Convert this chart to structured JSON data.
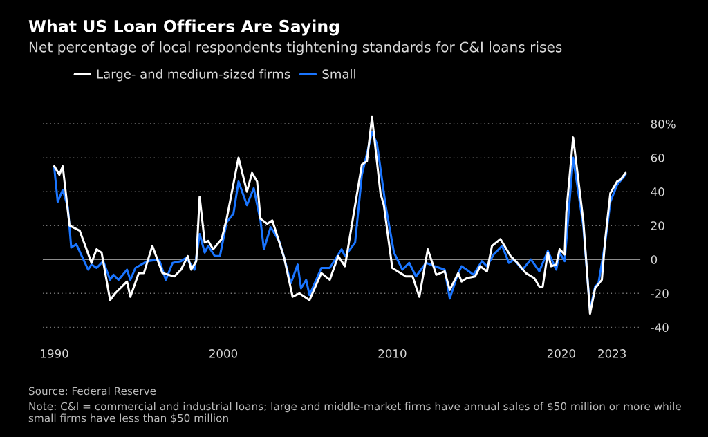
{
  "chart_data": {
    "type": "line",
    "title": "What US Loan Officers Are Saying",
    "subtitle": "Net percentage of local respondents tightening standards for C&I loans rises",
    "annotations": [
      "Source: Federal Reserve",
      "Note: C&I = commercial and industrial loans; large and middle-market firms have annual sales of $50 million or more while small firms have less than $50 million"
    ],
    "series": [
      {
        "name": "Large- and medium-sized firms",
        "color": "#ffffff",
        "x": [
          1990.0,
          1990.3,
          1990.5,
          1990.9,
          1991.5,
          1992.2,
          1992.5,
          1992.8,
          1993.3,
          1993.6,
          1994.3,
          1994.5,
          1995.0,
          1995.3,
          1995.8,
          1996.4,
          1997.1,
          1997.5,
          1997.9,
          1998.1,
          1998.4,
          1998.6,
          1998.9,
          1999.1,
          1999.4,
          1999.9,
          2000.2,
          2000.9,
          2001.4,
          2001.7,
          2002.0,
          2002.2,
          2002.6,
          2002.9,
          2003.6,
          2004.1,
          2004.5,
          2005.1,
          2005.8,
          2006.3,
          2006.8,
          2007.2,
          2008.2,
          2008.5,
          2008.8,
          2009.3,
          2009.5,
          2010.0,
          2010.8,
          2011.2,
          2011.6,
          2012.1,
          2012.6,
          2013.1,
          2013.4,
          2013.9,
          2014.1,
          2014.4,
          2014.9,
          2015.2,
          2015.6,
          2015.9,
          2016.4,
          2017.0,
          2017.4,
          2017.9,
          2018.4,
          2018.7,
          2018.9,
          2019.2,
          2019.4,
          2019.7,
          2019.9,
          2020.2,
          2020.3,
          2020.7,
          2021.3,
          2021.7,
          2022.0,
          2022.4,
          2022.6,
          2022.9,
          2023.3,
          2023.5,
          2023.8
        ],
        "values": [
          55,
          50,
          55,
          20,
          17,
          -2,
          6,
          4,
          -24,
          -20,
          -13,
          -22,
          -8,
          -8,
          8,
          -8,
          -10,
          -6,
          2,
          -6,
          -1,
          37,
          10,
          11,
          6,
          12,
          24,
          60,
          40,
          51,
          46,
          24,
          21,
          23,
          1,
          -22,
          -20,
          -24,
          -8,
          -12,
          2,
          -4,
          56,
          58,
          84,
          39,
          32,
          -5,
          -10,
          -10,
          -22,
          6,
          -9,
          -7,
          -18,
          -8,
          -13,
          -11,
          -10,
          -4,
          -7,
          8,
          12,
          2,
          -2,
          -8,
          -11,
          -16,
          -16,
          4,
          -4,
          -3,
          6,
          3,
          28,
          72,
          23,
          -32,
          -17,
          -12,
          12,
          39,
          46,
          47,
          51
        ]
      },
      {
        "name": "Small",
        "color": "#1a75ff",
        "x": [
          1990.0,
          1990.2,
          1990.5,
          1990.8,
          1991.0,
          1991.3,
          1992.0,
          1992.2,
          1992.5,
          1992.9,
          1993.3,
          1993.5,
          1993.8,
          1994.3,
          1994.5,
          1994.8,
          1995.5,
          1996.2,
          1996.6,
          1997.0,
          1997.5,
          1997.8,
          1998.3,
          1998.6,
          1998.9,
          1999.1,
          1999.5,
          1999.8,
          2000.2,
          2000.6,
          2000.9,
          2001.4,
          2001.8,
          2002.2,
          2002.4,
          2002.8,
          2003.3,
          2003.6,
          2004.0,
          2004.4,
          2004.6,
          2004.9,
          2005.1,
          2005.8,
          2006.3,
          2007.0,
          2007.2,
          2007.8,
          2008.2,
          2008.8,
          2009.1,
          2009.6,
          2010.1,
          2010.6,
          2011.0,
          2011.4,
          2012.0,
          2012.5,
          2013.1,
          2013.4,
          2013.9,
          2014.1,
          2014.4,
          2014.8,
          2015.3,
          2015.6,
          2016.0,
          2016.5,
          2016.9,
          2017.2,
          2017.7,
          2018.2,
          2018.7,
          2019.2,
          2019.7,
          2019.9,
          2020.2,
          2020.7,
          2021.3,
          2021.7,
          2022.0,
          2022.2,
          2022.6,
          2022.9,
          2023.3,
          2023.8
        ],
        "values": [
          54,
          34,
          41,
          31,
          7,
          9,
          -6,
          -3,
          -5,
          -1,
          -12,
          -9,
          -12,
          -6,
          -12,
          -5,
          -1,
          0,
          -12,
          -2,
          -1,
          1,
          -6,
          15,
          4,
          8,
          2,
          2,
          22,
          27,
          46,
          32,
          42,
          23,
          6,
          19,
          11,
          1,
          -14,
          -3,
          -17,
          -12,
          -21,
          -5,
          -5,
          6,
          2,
          10,
          50,
          75,
          68,
          32,
          4,
          -6,
          -2,
          -10,
          -2,
          -4,
          -6,
          -23,
          -8,
          -4,
          -6,
          -9,
          -1,
          -4,
          3,
          8,
          -2,
          0,
          -6,
          0,
          -7,
          5,
          -6,
          4,
          -1,
          60,
          20,
          -30,
          -16,
          -14,
          10,
          34,
          44,
          50
        ]
      }
    ],
    "xlim": [
      1989.3,
      2024.7
    ],
    "xticks": [
      1990,
      2000,
      2010,
      2020,
      2023
    ],
    "ylim": [
      -48,
      86
    ],
    "yticks": [
      {
        "value": 80,
        "label": "80%"
      },
      60,
      40,
      20,
      0,
      -20,
      -40
    ],
    "ref_lines": [
      {
        "axis": "y",
        "value": 0,
        "color": "#8c8c8c"
      }
    ],
    "grid": "y",
    "legend": "top left",
    "line_style": "solid",
    "marker": "none"
  }
}
